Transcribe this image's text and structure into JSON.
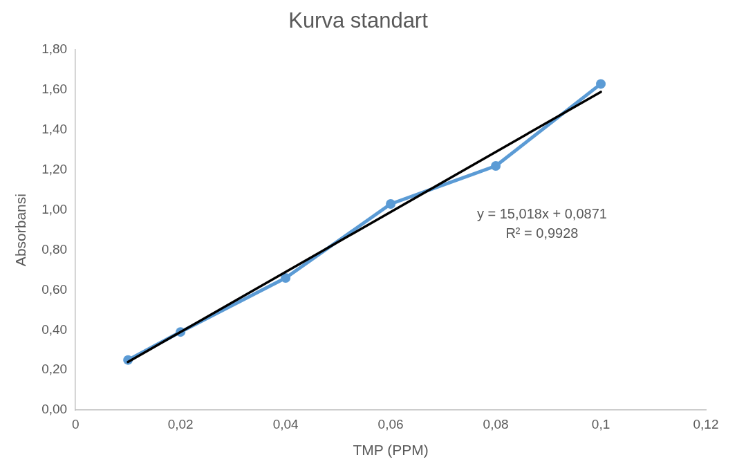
{
  "chart_data": {
    "type": "line",
    "title": "Kurva standart",
    "xlabel": "TMP (PPM)",
    "ylabel": "Absorbansi",
    "series": [
      {
        "color": "#5b9bd5",
        "x": [
          0.01,
          0.02,
          0.04,
          0.06,
          0.08,
          0.1
        ],
        "values": [
          0.25,
          0.39,
          0.66,
          1.03,
          1.22,
          1.63
        ]
      },
      {
        "color": "#000000",
        "x": [
          0.01,
          0.1
        ],
        "values": [
          0.24,
          1.59
        ],
        "marker": "none"
      }
    ],
    "marker": "circle",
    "grid": false,
    "legend": false,
    "xlim": [
      0,
      0.12
    ],
    "xticks": [
      0,
      {
        "value": 0.02,
        "label": "0,02"
      },
      {
        "value": 0.04,
        "label": "0,04"
      },
      {
        "value": 0.06,
        "label": "0,06"
      },
      {
        "value": 0.08,
        "label": "0,08"
      },
      {
        "value": 0.1,
        "label": "0,1"
      },
      {
        "value": 0.12,
        "label": "0,12"
      }
    ],
    "ylim": [
      0,
      1.8
    ],
    "yticks": [
      {
        "value": 0,
        "label": "0,00"
      },
      {
        "value": 0.2,
        "label": "0,20"
      },
      {
        "value": 0.4,
        "label": "0,40"
      },
      {
        "value": 0.6,
        "label": "0,60"
      },
      {
        "value": 0.8,
        "label": "0,80"
      },
      {
        "value": 1,
        "label": "1,00"
      },
      {
        "value": 1.2,
        "label": "1,20"
      },
      {
        "value": 1.4,
        "label": "1,40"
      },
      {
        "value": 1.6,
        "label": "1,60"
      },
      {
        "value": 1.8,
        "label": "1,80"
      }
    ],
    "annotations": [
      "y = 15,018x + 0,0871",
      "R² = 0,9928"
    ]
  }
}
